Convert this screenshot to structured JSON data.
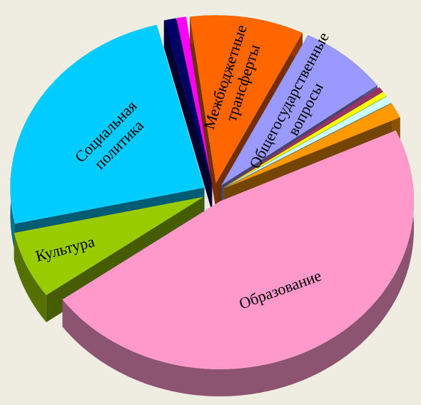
{
  "chart_data": {
    "type": "pie3d",
    "categories": [
      "Образование",
      "Культура",
      "Социальная политика",
      null,
      null,
      "Межбюджетные трансферты",
      "Общегосударственные вопросы",
      null,
      null,
      null,
      null
    ],
    "values": [
      47,
      6.5,
      24.5,
      1,
      0.8,
      9.5,
      7.5,
      0.5,
      0.5,
      0.7,
      1.5
    ],
    "colors": [
      "#ff99cc",
      "#99cc00",
      "#00ccff",
      "#000066",
      "#ff00ff",
      "#ff6600",
      "#9999ff",
      "#993366",
      "#ffff00",
      "#ccffff",
      "#ff9900"
    ]
  }
}
